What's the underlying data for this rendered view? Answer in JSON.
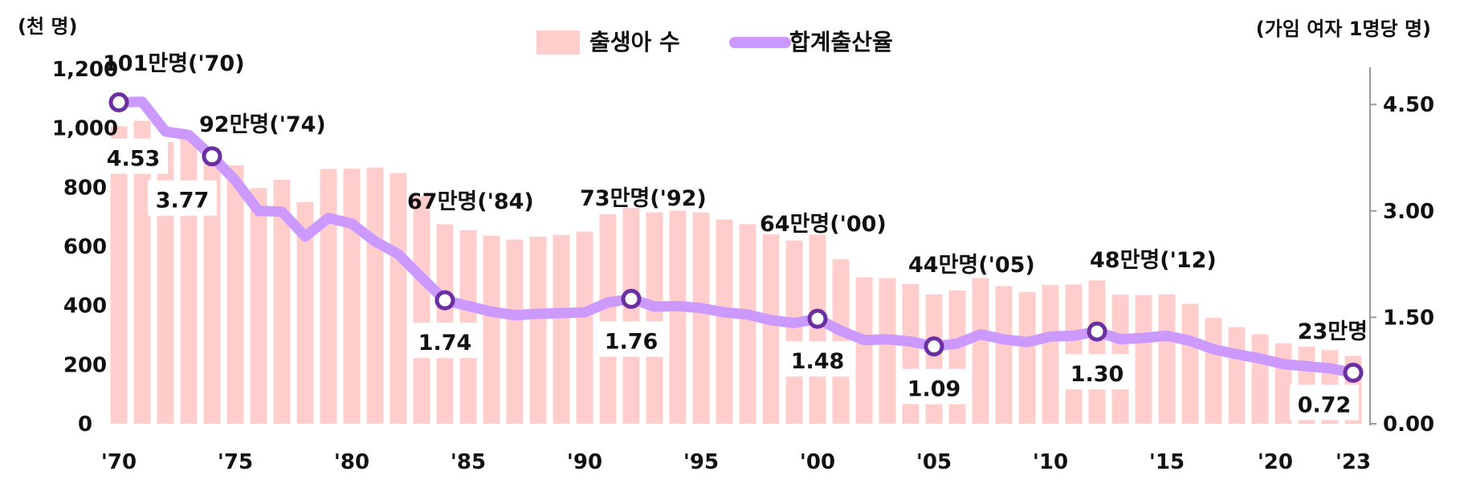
{
  "colors": {
    "bar": "#ffcdcc",
    "line": "#cc99ff",
    "marker_stroke": "#6a2fa0",
    "marker_fill": "#ffffff",
    "text": "#111111"
  },
  "chart_data": {
    "type": "bar+line",
    "left_unit": "(천 명)",
    "right_unit": "(가임 여자 1명당 명)",
    "legend": [
      "출생아 수",
      "합계출산율"
    ],
    "y_left_lim": [
      0,
      1200
    ],
    "y_left_ticks": [
      "0",
      "200",
      "400",
      "600",
      "800",
      "1,000",
      "1,200"
    ],
    "y_left_tick_values": [
      0,
      200,
      400,
      600,
      800,
      1000,
      1200
    ],
    "y_right_lim": [
      0,
      5
    ],
    "y_right_ticks": [
      "0.00",
      "1.50",
      "3.00",
      "4.50"
    ],
    "y_right_tick_values": [
      0,
      1.5,
      3.0,
      4.5
    ],
    "x_ticks": [
      "'70",
      "'75",
      "'80",
      "'85",
      "'90",
      "'95",
      "'00",
      "'05",
      "'10",
      "'15",
      "'20",
      "'23"
    ],
    "x_tick_years": [
      1970,
      1975,
      1980,
      1985,
      1990,
      1995,
      2000,
      2005,
      2010,
      2015,
      2020,
      2023
    ],
    "years": [
      1970,
      1971,
      1972,
      1973,
      1974,
      1975,
      1976,
      1977,
      1978,
      1979,
      1980,
      1981,
      1982,
      1983,
      1984,
      1985,
      1986,
      1987,
      1988,
      1989,
      1990,
      1991,
      1992,
      1993,
      1994,
      1995,
      1996,
      1997,
      1998,
      1999,
      2000,
      2001,
      2002,
      2003,
      2004,
      2005,
      2006,
      2007,
      2008,
      2009,
      2010,
      2011,
      2012,
      2013,
      2014,
      2015,
      2016,
      2017,
      2018,
      2019,
      2020,
      2021,
      2022,
      2023
    ],
    "births": [
      1007,
      1025,
      953,
      966,
      922,
      874,
      797,
      825,
      750,
      862,
      863,
      867,
      848,
      770,
      675,
      655,
      636,
      623,
      633,
      639,
      650,
      709,
      731,
      715,
      721,
      715,
      691,
      675,
      641,
      620,
      640,
      557,
      495,
      493,
      473,
      438,
      451,
      493,
      466,
      445,
      470,
      471,
      485,
      437,
      435,
      438,
      406,
      358,
      327,
      303,
      272,
      261,
      249,
      230
    ],
    "tfr": [
      4.53,
      4.54,
      4.12,
      4.07,
      3.77,
      3.43,
      3.0,
      2.99,
      2.64,
      2.9,
      2.82,
      2.57,
      2.39,
      2.06,
      1.74,
      1.66,
      1.58,
      1.53,
      1.55,
      1.56,
      1.57,
      1.71,
      1.76,
      1.65,
      1.66,
      1.63,
      1.57,
      1.54,
      1.46,
      1.42,
      1.48,
      1.31,
      1.18,
      1.19,
      1.16,
      1.09,
      1.13,
      1.26,
      1.19,
      1.15,
      1.23,
      1.24,
      1.3,
      1.19,
      1.21,
      1.24,
      1.17,
      1.05,
      0.98,
      0.92,
      0.84,
      0.81,
      0.78,
      0.72
    ],
    "highlighted_rates": [
      {
        "year": 1970,
        "label": "4.53"
      },
      {
        "year": 1974,
        "label": "3.77"
      },
      {
        "year": 1984,
        "label": "1.74"
      },
      {
        "year": 1992,
        "label": "1.76"
      },
      {
        "year": 2000,
        "label": "1.48"
      },
      {
        "year": 2005,
        "label": "1.09"
      },
      {
        "year": 2012,
        "label": "1.30"
      },
      {
        "year": 2023,
        "label": "0.72"
      }
    ],
    "birth_annotations": [
      {
        "year": 1970,
        "label": "101만명('70)"
      },
      {
        "year": 1974,
        "label": "92만명('74)"
      },
      {
        "year": 1984,
        "label": "67만명('84)"
      },
      {
        "year": 1992,
        "label": "73만명('92)"
      },
      {
        "year": 2000,
        "label": "64만명('00)"
      },
      {
        "year": 2005,
        "label": "44만명('05)"
      },
      {
        "year": 2012,
        "label": "48만명('12)"
      },
      {
        "year": 2023,
        "label": "23만명"
      }
    ]
  }
}
